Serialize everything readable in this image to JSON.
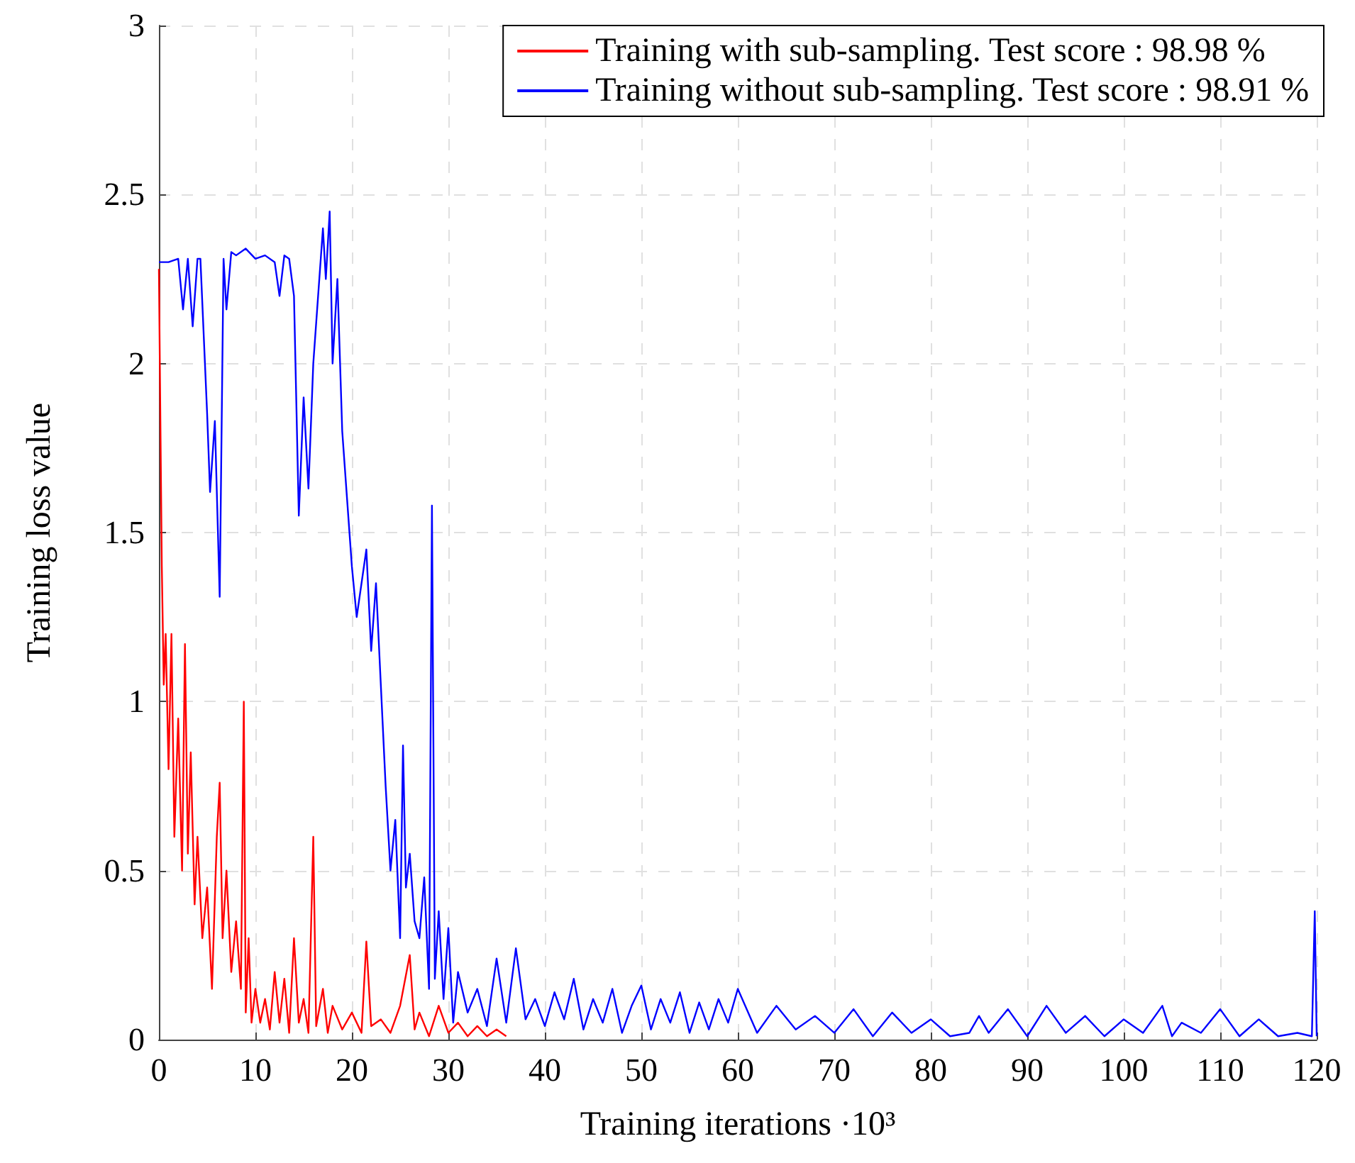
{
  "chart_data": {
    "type": "line",
    "xlabel": "Training iterations ·10³",
    "ylabel": "Training loss value",
    "xlim": [
      0,
      120
    ],
    "ylim": [
      0,
      3
    ],
    "xticks": [
      0,
      10,
      20,
      30,
      40,
      50,
      60,
      70,
      80,
      90,
      100,
      110,
      120
    ],
    "yticks": [
      0,
      0.5,
      1,
      1.5,
      2,
      2.5,
      3
    ],
    "grid": true,
    "legend": "top right",
    "marker": "none",
    "line_style": "solid",
    "series": [
      {
        "name": "Training with sub-sampling. Test score : 98.98 %",
        "color": "#ff0000",
        "x": [
          0,
          0.3,
          0.5,
          0.7,
          1,
          1.3,
          1.6,
          2,
          2.4,
          2.7,
          3,
          3.3,
          3.7,
          4,
          4.5,
          5,
          5.5,
          6,
          6.3,
          6.6,
          7,
          7.5,
          8,
          8.5,
          8.8,
          9,
          9.3,
          9.6,
          10,
          10.5,
          11,
          11.5,
          12,
          12.5,
          13,
          13.5,
          14,
          14.5,
          15,
          15.5,
          16,
          16.3,
          17,
          17.5,
          18,
          19,
          20,
          21,
          21.5,
          22,
          23,
          24,
          25,
          26,
          26.5,
          27,
          28,
          29,
          30,
          31,
          32,
          33,
          34,
          35,
          36
        ],
        "values": [
          2.28,
          1.4,
          1.05,
          1.2,
          0.8,
          1.2,
          0.6,
          0.95,
          0.5,
          1.17,
          0.55,
          0.85,
          0.4,
          0.6,
          0.3,
          0.45,
          0.15,
          0.6,
          0.76,
          0.3,
          0.5,
          0.2,
          0.35,
          0.15,
          1.0,
          0.08,
          0.3,
          0.05,
          0.15,
          0.05,
          0.12,
          0.03,
          0.2,
          0.05,
          0.18,
          0.02,
          0.3,
          0.05,
          0.12,
          0.02,
          0.6,
          0.04,
          0.15,
          0.02,
          0.1,
          0.03,
          0.08,
          0.02,
          0.29,
          0.04,
          0.06,
          0.02,
          0.1,
          0.25,
          0.03,
          0.08,
          0.01,
          0.1,
          0.02,
          0.05,
          0.01,
          0.04,
          0.01,
          0.03,
          0.01
        ]
      },
      {
        "name": "Training without sub-sampling. Test score : 98.91 %",
        "color": "#0000ff",
        "x": [
          0,
          1,
          2,
          2.5,
          3,
          3.5,
          4,
          4.3,
          5,
          5.3,
          5.8,
          6.3,
          6.7,
          7,
          7.5,
          8,
          9,
          10,
          11,
          12,
          12.5,
          13,
          13.5,
          14,
          14.5,
          15,
          15.5,
          16,
          17,
          17.3,
          17.7,
          18,
          18.5,
          19,
          19.5,
          20,
          20.5,
          21,
          21.5,
          22,
          22.5,
          23,
          23.5,
          24,
          24.5,
          25,
          25.3,
          25.6,
          26,
          26.5,
          27,
          27.5,
          28,
          28.3,
          28.6,
          29,
          29.5,
          30,
          30.5,
          31,
          32,
          33,
          34,
          35,
          36,
          37,
          38,
          39,
          40,
          41,
          42,
          43,
          44,
          45,
          46,
          47,
          48,
          49,
          50,
          51,
          52,
          53,
          54,
          55,
          56,
          57,
          58,
          59,
          60,
          62,
          64,
          66,
          68,
          70,
          72,
          74,
          76,
          78,
          80,
          82,
          84,
          85,
          86,
          88,
          90,
          92,
          94,
          96,
          98,
          100,
          102,
          104,
          105,
          106,
          108,
          110,
          112,
          114,
          116,
          118,
          119.5,
          119.8,
          120
        ],
        "values": [
          2.3,
          2.3,
          2.31,
          2.16,
          2.31,
          2.11,
          2.31,
          2.31,
          1.85,
          1.62,
          1.83,
          1.31,
          2.31,
          2.16,
          2.33,
          2.32,
          2.34,
          2.31,
          2.32,
          2.3,
          2.2,
          2.32,
          2.31,
          2.2,
          1.55,
          1.9,
          1.63,
          2.0,
          2.4,
          2.25,
          2.45,
          2.0,
          2.25,
          1.8,
          1.6,
          1.4,
          1.25,
          1.35,
          1.45,
          1.15,
          1.35,
          1.05,
          0.75,
          0.5,
          0.65,
          0.3,
          0.87,
          0.45,
          0.55,
          0.35,
          0.3,
          0.48,
          0.15,
          1.58,
          0.18,
          0.38,
          0.12,
          0.33,
          0.05,
          0.2,
          0.08,
          0.15,
          0.04,
          0.24,
          0.05,
          0.27,
          0.06,
          0.12,
          0.04,
          0.14,
          0.06,
          0.18,
          0.03,
          0.12,
          0.05,
          0.15,
          0.02,
          0.1,
          0.16,
          0.03,
          0.12,
          0.05,
          0.14,
          0.02,
          0.11,
          0.03,
          0.12,
          0.05,
          0.15,
          0.02,
          0.1,
          0.03,
          0.07,
          0.02,
          0.09,
          0.01,
          0.08,
          0.02,
          0.06,
          0.01,
          0.02,
          0.07,
          0.02,
          0.09,
          0.01,
          0.1,
          0.02,
          0.07,
          0.01,
          0.06,
          0.02,
          0.1,
          0.01,
          0.05,
          0.02,
          0.09,
          0.01,
          0.06,
          0.01,
          0.02,
          0.01,
          0.38,
          0.01
        ]
      }
    ]
  }
}
